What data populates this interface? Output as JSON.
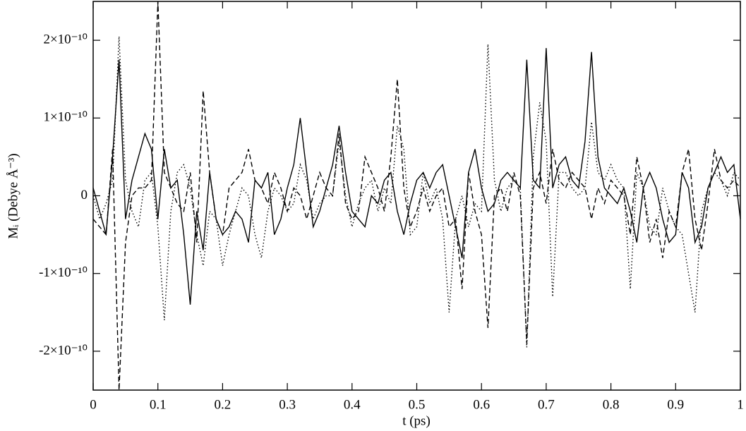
{
  "chart_data": {
    "type": "line",
    "xlabel": "t (ps)",
    "ylabel": "Mᵢ (Debye Å⁻³)",
    "xlim": [
      0,
      1
    ],
    "ylim": [
      -2.5e-10,
      2.5e-10
    ],
    "xticks": [
      0,
      0.1,
      0.2,
      0.3,
      0.4,
      0.5,
      0.6,
      0.7,
      0.8,
      0.9,
      1
    ],
    "yticks": [
      {
        "value": -2e-10,
        "label": "-2×10⁻¹⁰"
      },
      {
        "value": -1e-10,
        "label": "-1×10⁻¹⁰"
      },
      0,
      {
        "value": 1e-10,
        "label": "1×10⁻¹⁰"
      },
      {
        "value": 2e-10,
        "label": "2×10⁻¹⁰"
      }
    ],
    "x": [
      0,
      0.01,
      0.02,
      0.03,
      0.04,
      0.05,
      0.06,
      0.07,
      0.08,
      0.09,
      0.1,
      0.11,
      0.12,
      0.13,
      0.14,
      0.15,
      0.16,
      0.17,
      0.18,
      0.19,
      0.2,
      0.21,
      0.22,
      0.23,
      0.24,
      0.25,
      0.26,
      0.27,
      0.28,
      0.29,
      0.3,
      0.31,
      0.32,
      0.33,
      0.34,
      0.35,
      0.36,
      0.37,
      0.38,
      0.39,
      0.4,
      0.41,
      0.42,
      0.43,
      0.44,
      0.45,
      0.46,
      0.47,
      0.48,
      0.49,
      0.5,
      0.51,
      0.52,
      0.53,
      0.54,
      0.55,
      0.56,
      0.57,
      0.58,
      0.59,
      0.6,
      0.61,
      0.62,
      0.63,
      0.64,
      0.65,
      0.66,
      0.67,
      0.68,
      0.69,
      0.7,
      0.71,
      0.72,
      0.73,
      0.74,
      0.75,
      0.76,
      0.77,
      0.78,
      0.79,
      0.8,
      0.81,
      0.82,
      0.83,
      0.84,
      0.85,
      0.86,
      0.87,
      0.88,
      0.89,
      0.9,
      0.91,
      0.92,
      0.93,
      0.94,
      0.95,
      0.96,
      0.97,
      0.98,
      0.99,
      1
    ],
    "series": [
      {
        "color": "#000000",
        "dash": "solid",
        "values": [
          1e-11,
          -2e-11,
          -5e-11,
          5e-11,
          1.75e-10,
          -3e-11,
          2e-11,
          5e-11,
          8e-11,
          6e-11,
          -3e-11,
          6e-11,
          1e-11,
          2e-11,
          -5e-11,
          -1.4e-10,
          -2e-11,
          -7e-11,
          3e-11,
          -3e-11,
          -5e-11,
          -4e-11,
          -2e-11,
          -3e-11,
          -6e-11,
          2e-11,
          1e-11,
          3e-11,
          -5e-11,
          -3e-11,
          1e-11,
          4e-11,
          1e-10,
          3e-11,
          -4e-11,
          -2e-11,
          1e-11,
          4e-11,
          9e-11,
          3e-11,
          -2e-11,
          -3e-11,
          -4e-11,
          0,
          -1e-11,
          2e-11,
          3e-11,
          -2e-11,
          -5e-11,
          -1e-11,
          2e-11,
          3e-11,
          1e-11,
          3e-11,
          4e-11,
          0,
          -4e-11,
          -8e-11,
          3e-11,
          6e-11,
          1e-11,
          -2e-11,
          -1e-11,
          2e-11,
          3e-11,
          2e-11,
          1e-11,
          1.75e-10,
          2e-11,
          1e-11,
          1.9e-10,
          1e-11,
          4e-11,
          5e-11,
          2e-11,
          1e-11,
          7e-11,
          1.85e-10,
          5e-11,
          1e-11,
          0,
          -1e-11,
          1e-11,
          -2e-11,
          -6e-11,
          1e-11,
          3e-11,
          1e-11,
          -3e-11,
          -6e-11,
          -5e-11,
          3e-11,
          1e-11,
          -6e-11,
          -4e-11,
          1e-11,
          3e-11,
          5e-11,
          3e-11,
          4e-11,
          -3e-11
        ]
      },
      {
        "color": "#000000",
        "dash": "dashed",
        "values": [
          -3e-11,
          -4e-11,
          -5e-11,
          6e-11,
          -2.5e-10,
          -6e-11,
          0,
          1e-11,
          1e-11,
          2e-11,
          2.5e-10,
          3e-11,
          1e-11,
          -1e-11,
          -2e-11,
          3e-11,
          -6e-11,
          1.35e-10,
          3e-11,
          -3e-11,
          -5e-11,
          1e-11,
          2e-11,
          3e-11,
          6e-11,
          2e-11,
          1e-11,
          -1e-11,
          3e-11,
          1e-11,
          -2e-11,
          1e-11,
          0,
          -3e-11,
          0,
          3e-11,
          1e-11,
          0,
          8e-11,
          -1e-11,
          -3e-11,
          -2e-11,
          5e-11,
          3e-11,
          1e-11,
          -2e-11,
          5e-11,
          1.5e-10,
          1e-11,
          -4e-11,
          -2e-11,
          1e-11,
          -2e-11,
          0,
          1e-11,
          -4e-11,
          -3e-11,
          -1.2e-10,
          3e-11,
          -2e-11,
          -5e-11,
          -1.7e-10,
          0,
          1e-11,
          -2e-11,
          3e-11,
          0,
          -1.9e-10,
          1e-11,
          3e-11,
          -1e-11,
          6e-11,
          2e-11,
          1e-11,
          3e-11,
          2e-11,
          1e-11,
          -3e-11,
          1e-11,
          -1e-11,
          2e-11,
          1e-11,
          0,
          -5e-11,
          5e-11,
          1e-11,
          -6e-11,
          -3e-11,
          -8e-11,
          -2e-11,
          -4e-11,
          3e-11,
          6e-11,
          -3e-11,
          -7e-11,
          -1e-11,
          6e-11,
          2e-11,
          1e-11,
          2e-11,
          1e-11
        ]
      },
      {
        "color": "#000000",
        "dash": "dotted",
        "values": [
          0,
          -3e-11,
          -1e-11,
          2e-11,
          2.05e-10,
          2e-11,
          -2e-11,
          -4e-11,
          2e-11,
          3e-11,
          -4e-11,
          -1.6e-10,
          -2e-11,
          3e-11,
          4e-11,
          1e-11,
          -5e-11,
          -9e-11,
          -2e-11,
          -3e-11,
          -9e-11,
          -5e-11,
          -2e-11,
          1e-11,
          0,
          -5e-11,
          -8e-11,
          -2e-11,
          1e-11,
          0,
          -2e-11,
          -1e-11,
          4e-11,
          2e-11,
          -3e-11,
          -1e-11,
          0,
          0,
          7e-11,
          0,
          -4e-11,
          -1e-11,
          1e-11,
          2e-11,
          -2e-11,
          1e-11,
          -1e-11,
          9e-11,
          6e-11,
          -5e-11,
          -4e-11,
          3e-11,
          -1e-11,
          1e-11,
          -3e-11,
          -1.5e-10,
          -3e-11,
          0,
          -4e-11,
          -1e-11,
          -2e-11,
          1.95e-10,
          2e-11,
          -2e-11,
          1e-11,
          2e-11,
          1e-11,
          -1.95e-10,
          5e-11,
          1.2e-10,
          7e-11,
          -1.3e-10,
          3e-11,
          3e-11,
          1e-11,
          0,
          1e-11,
          9.5e-11,
          3e-11,
          2e-11,
          4e-11,
          2e-11,
          1e-11,
          -1.2e-10,
          3e-11,
          1e-11,
          -4e-11,
          -5e-11,
          1e-11,
          -2e-11,
          -4e-11,
          -5e-11,
          -1e-10,
          -1.5e-10,
          -2e-11,
          1e-11,
          3e-11,
          2e-11,
          0,
          3e-11,
          2e-11
        ]
      }
    ]
  }
}
